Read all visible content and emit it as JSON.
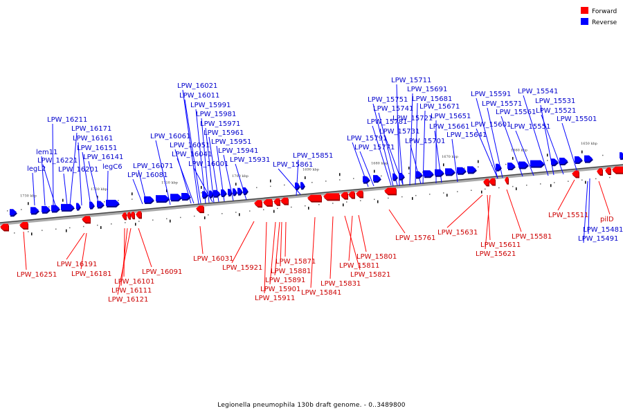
{
  "legend": {
    "forward": {
      "label": "Forward",
      "color": "#ff0000"
    },
    "reverse": {
      "label": "Reverse",
      "color": "#0000ff"
    }
  },
  "caption": "Legionella pneumophila 130b draft genome. - 0..3489800",
  "axis_ticks": [
    "1730 kbp",
    "1720 kbp",
    "1710 kbp",
    "1700 kbp",
    "1690 kbp",
    "1680 kbp",
    "1670 kbp",
    "1660 kbp",
    "1650 kbp"
  ],
  "reverse_labels": [
    "LPW_16211",
    "LPW_16171",
    "LPW_16161",
    "lem11",
    "LPW_16151",
    "LPW_16221",
    "LPW_16141",
    "legL2",
    "LPW_16201",
    "legC6",
    "LPW_16061",
    "LPW_16071",
    "LPW_16081",
    "LPW_16021",
    "LPW_16011",
    "LPW_15991",
    "LPW_15981",
    "LPW_15971",
    "LPW_15961",
    "LPW_16051",
    "LPW_15951",
    "LPW_16041",
    "LPW_15941",
    "LPW_16001",
    "LPW_15931",
    "LPW_15851",
    "LPW_15861",
    "LPW_15711",
    "LPW_15691",
    "LPW_15681",
    "LPW_15751",
    "LPW_15671",
    "LPW_15741",
    "LPW_15721",
    "LPW_15651",
    "LPW_15781",
    "LPW_15661",
    "LPW_15731",
    "LPW_15791",
    "LPW_15701",
    "LPW_15641",
    "LPW_15771",
    "LPW_15591",
    "LPW_15571",
    "LPW_15541",
    "LPW_15531",
    "LPW_15561",
    "LPW_15521",
    "LPW_15601",
    "LPW_15551",
    "LPW_15501",
    "LPW_15481",
    "LPW_15491"
  ],
  "forward_labels": [
    "LPW_16251",
    "LPW_16191",
    "LPW_16181",
    "LPW_16101",
    "LPW_16111",
    "LPW_16121",
    "LPW_16091",
    "LPW_16031",
    "LPW_15921",
    "LPW_15871",
    "LPW_15881",
    "LPW_15891",
    "LPW_15901",
    "LPW_15911",
    "LPW_15841",
    "LPW_15831",
    "LPW_15821",
    "LPW_15811",
    "LPW_15801",
    "LPW_15761",
    "LPW_15631",
    "LPW_15611",
    "LPW_15621",
    "LPW_15581",
    "LPW_15511",
    "pilD"
  ]
}
